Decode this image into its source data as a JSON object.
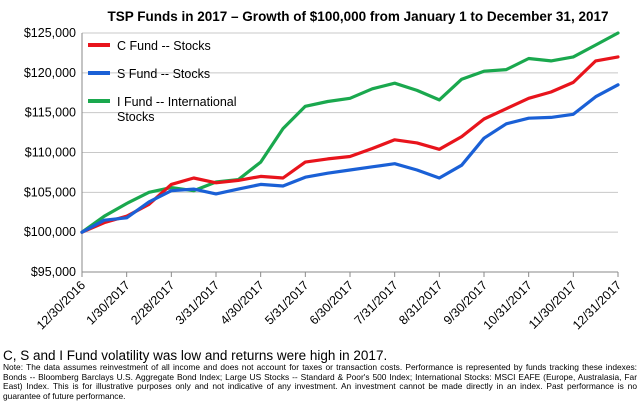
{
  "chart_data": {
    "type": "line",
    "title": "TSP Funds in 2017 – Growth of $100,000 from January 1 to December 31, 2017",
    "xlabel": "",
    "ylabel": "",
    "ylim": [
      95000,
      125000
    ],
    "yticks": [
      "$95,000",
      "$100,000",
      "$105,000",
      "$110,000",
      "$115,000",
      "$120,000",
      "$125,000"
    ],
    "xticks": [
      "12/30/2016",
      "1/30/2017",
      "2/28/2017",
      "3/31/2017",
      "4/30/2017",
      "5/31/2017",
      "6/30/2017",
      "7/31/2017",
      "8/31/2017",
      "9/30/2017",
      "10/31/2017",
      "11/30/2017",
      "12/31/2017"
    ],
    "grid": "horizontal",
    "legend_position": "top-left",
    "series": [
      {
        "name": "C Fund -- Stocks",
        "color": "#e8141c",
        "x": [
          0,
          0.5,
          1,
          1.5,
          2,
          2.5,
          3,
          3.5,
          4,
          4.5,
          5,
          5.5,
          6,
          6.5,
          7,
          7.5,
          8,
          8.5,
          9,
          9.5,
          10,
          10.5,
          11,
          11.5,
          12
        ],
        "values": [
          100000,
          101200,
          102000,
          103500,
          106000,
          106800,
          106200,
          106500,
          107000,
          106800,
          108800,
          109200,
          109500,
          110500,
          111600,
          111200,
          110400,
          112000,
          114200,
          115500,
          116800,
          117600,
          118800,
          121500,
          122000
        ]
      },
      {
        "name": "S Fund -- Stocks",
        "color": "#1a60d6",
        "x": [
          0,
          0.5,
          1,
          1.5,
          2,
          2.5,
          3,
          3.5,
          4,
          4.5,
          5,
          5.5,
          6,
          6.5,
          7,
          7.5,
          8,
          8.5,
          9,
          9.5,
          10,
          10.5,
          11,
          11.5,
          12
        ],
        "values": [
          100000,
          101500,
          101800,
          103800,
          105200,
          105400,
          104800,
          105400,
          106000,
          105800,
          106900,
          107400,
          107800,
          108200,
          108600,
          107800,
          106800,
          108400,
          111800,
          113600,
          114300,
          114400,
          114800,
          117000,
          118500
        ]
      },
      {
        "name": "I Fund -- International Stocks",
        "color": "#1aa84e",
        "x": [
          0,
          0.5,
          1,
          1.5,
          2,
          2.5,
          3,
          3.5,
          4,
          4.5,
          5,
          5.5,
          6,
          6.5,
          7,
          7.5,
          8,
          8.5,
          9,
          9.5,
          10,
          10.5,
          11,
          11.5,
          12
        ],
        "values": [
          100000,
          102000,
          103600,
          105000,
          105600,
          105200,
          106300,
          106600,
          108800,
          113000,
          115800,
          116400,
          116800,
          118000,
          118700,
          117800,
          116600,
          119200,
          120200,
          120400,
          121800,
          121500,
          122000,
          123500,
          125000
        ]
      }
    ]
  },
  "caption": "C, S and I Fund volatility was low and returns were high in 2017.",
  "note": "Note: The data assumes reinvestment of all income and does not account for taxes or transaction costs. Performance is represented by funds tracking these indexes: Bonds -- Bloomberg Barclays U.S. Aggregate Bond Index; Large US Stocks -- Standard & Poor's 500 Index; International Stocks: MSCI EAFE (Europe, Australasia, Far East) Index. This is for illustrative purposes only and not indicative of any investment. An investment cannot be made directly in an index. Past performance is no guarantee of future performance."
}
